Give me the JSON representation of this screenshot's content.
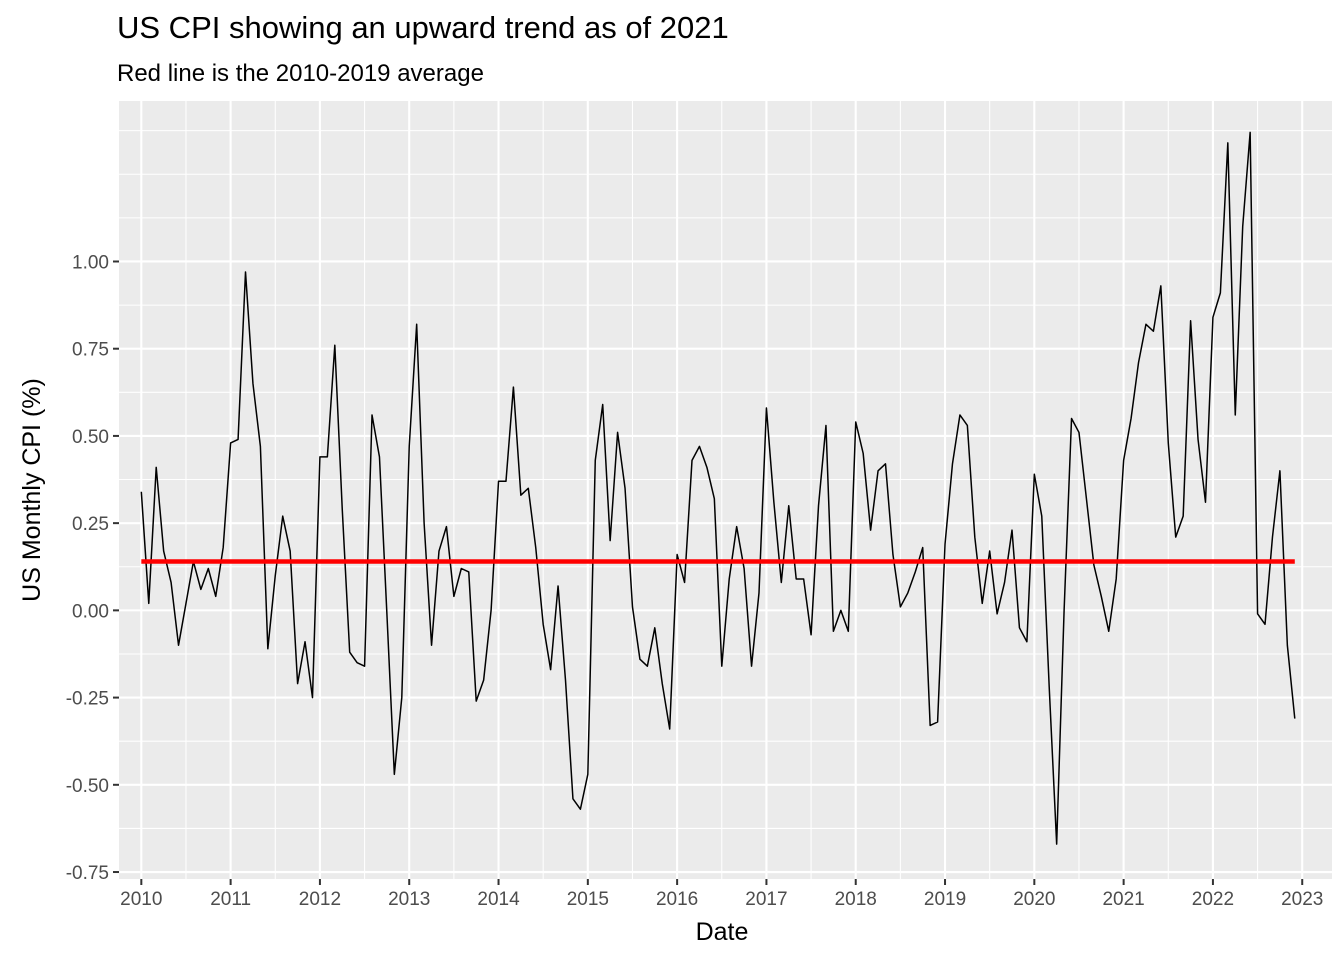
{
  "chart_data": {
    "type": "line",
    "title": "US CPI showing an upward trend as of 2021",
    "subtitle": "Red line is the 2010-2019 average",
    "xlabel": "Date",
    "ylabel": "US Monthly CPI (%)",
    "xlim": [
      "2009-10-01",
      "2023-05-01"
    ],
    "ylim": [
      -0.77,
      1.46
    ],
    "x_ticks": [
      "2010",
      "2011",
      "2012",
      "2013",
      "2014",
      "2015",
      "2016",
      "2017",
      "2018",
      "2019",
      "2020",
      "2021",
      "2022",
      "2023"
    ],
    "y_ticks": [
      "-0.75",
      "-0.50",
      "-0.25",
      "0.00",
      "0.25",
      "0.50",
      "0.75",
      "1.00"
    ],
    "grid": true,
    "legend": "none",
    "series": [
      {
        "color": "#000000",
        "start": "2010-01",
        "frequency": "monthly",
        "values": [
          0.34,
          0.02,
          0.41,
          0.17,
          0.08,
          -0.1,
          0.02,
          0.14,
          0.06,
          0.12,
          0.04,
          0.18,
          0.48,
          0.49,
          0.97,
          0.65,
          0.47,
          -0.11,
          0.1,
          0.27,
          0.17,
          -0.21,
          -0.09,
          -0.25,
          0.44,
          0.44,
          0.76,
          0.29,
          -0.12,
          -0.15,
          -0.16,
          0.56,
          0.44,
          -0.01,
          -0.47,
          -0.25,
          0.47,
          0.82,
          0.25,
          -0.1,
          0.17,
          0.24,
          0.04,
          0.12,
          0.11,
          -0.26,
          -0.2,
          0.0,
          0.37,
          0.37,
          0.64,
          0.33,
          0.35,
          0.18,
          -0.04,
          -0.17,
          0.07,
          -0.2,
          -0.54,
          -0.57,
          -0.47,
          0.43,
          0.59,
          0.2,
          0.51,
          0.35,
          0.01,
          -0.14,
          -0.16,
          -0.05,
          -0.21,
          -0.34,
          0.16,
          0.08,
          0.43,
          0.47,
          0.41,
          0.32,
          -0.16,
          0.09,
          0.24,
          0.12,
          -0.16,
          0.05,
          0.58,
          0.31,
          0.08,
          0.3,
          0.09,
          0.09,
          -0.07,
          0.3,
          0.53,
          -0.06,
          0.0,
          -0.06,
          0.54,
          0.45,
          0.23,
          0.4,
          0.42,
          0.16,
          0.01,
          0.05,
          0.11,
          0.18,
          -0.33,
          -0.32,
          0.19,
          0.42,
          0.56,
          0.53,
          0.21,
          0.02,
          0.17,
          -0.01,
          0.08,
          0.23,
          -0.05,
          -0.09,
          0.39,
          0.27,
          -0.22,
          -0.67,
          0.0,
          0.55,
          0.51,
          0.32,
          0.13,
          0.04,
          -0.06,
          0.09,
          0.43,
          0.55,
          0.71,
          0.82,
          0.8,
          0.93,
          0.48,
          0.21,
          0.27,
          0.83,
          0.49,
          0.31,
          0.84,
          0.91,
          1.34,
          0.56,
          1.1,
          1.37,
          -0.01,
          -0.04,
          0.21,
          0.4,
          -0.1,
          -0.31
        ]
      },
      {
        "color": "#ff0000",
        "start": "2010-01",
        "end": "2022-12",
        "values": [
          0.14,
          0.14
        ]
      }
    ]
  }
}
